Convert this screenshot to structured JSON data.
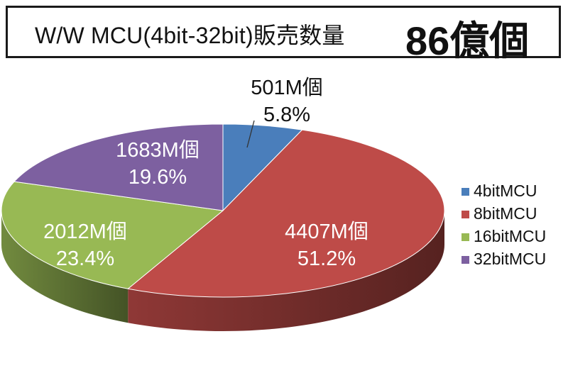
{
  "title": {
    "text": "W/W MCU(4bit-32bit)販売数量",
    "total": "86億個"
  },
  "chart_data": {
    "type": "pie",
    "title": "W/W MCU(4bit-32bit)販売数量",
    "total_label": "86億個",
    "legend_position": "right",
    "slices": [
      {
        "name": "4bitMCU",
        "value": 501,
        "value_label": "501M個",
        "percent_label": "5.8%",
        "color": "#4a7ebb"
      },
      {
        "name": "8bitMCU",
        "value": 4407,
        "value_label": "4407M個",
        "percent_label": "51.2%",
        "color": "#be4b48"
      },
      {
        "name": "16bitMCU",
        "value": 2012,
        "value_label": "2012M個",
        "percent_label": "23.4%",
        "color": "#98b954"
      },
      {
        "name": "32bitMCU",
        "value": 1683,
        "value_label": "1683M個",
        "percent_label": "19.6%",
        "color": "#7d60a0"
      }
    ]
  }
}
